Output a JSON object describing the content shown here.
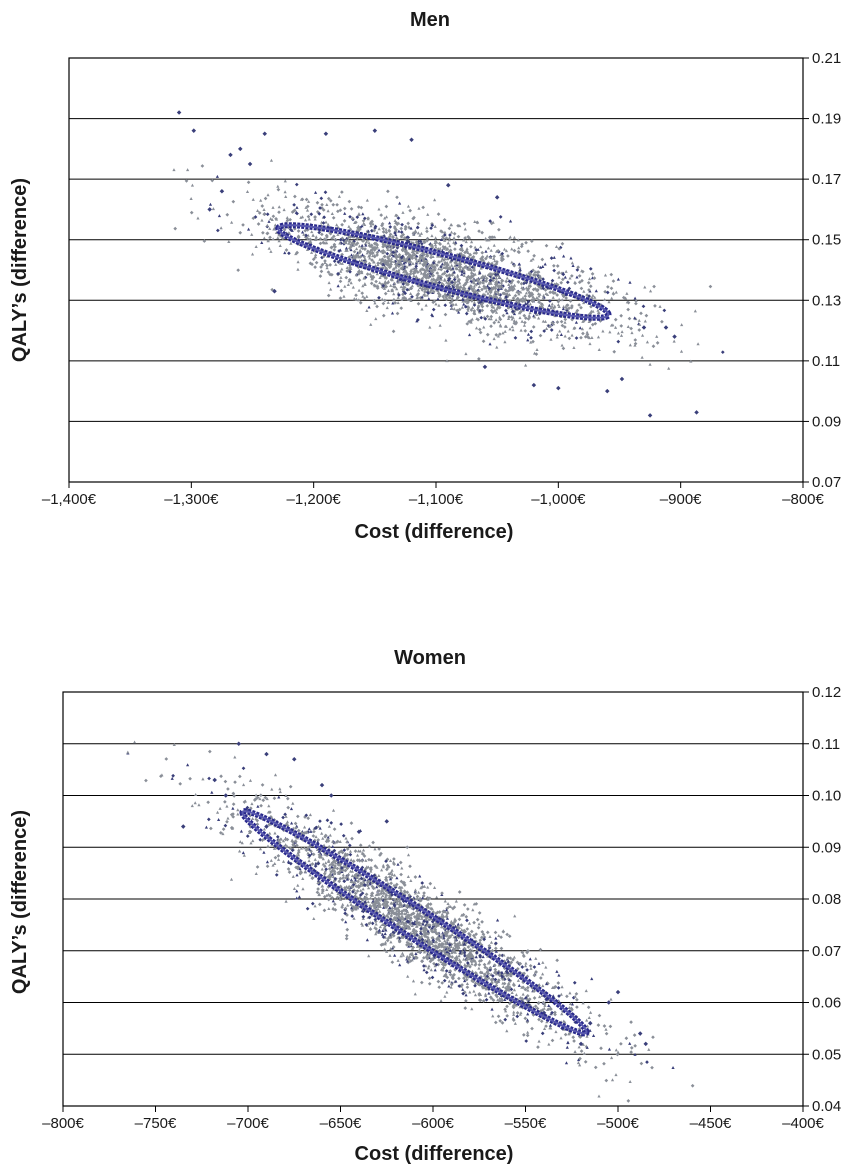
{
  "chart_data": [
    {
      "type": "scatter",
      "title": "Men",
      "xlabel": "Cost (difference)",
      "ylabel": "QALY’s (difference)",
      "xlim": [
        -1400,
        -800
      ],
      "ylim": [
        0.07,
        0.21
      ],
      "x_ticks": [
        -1400,
        -1300,
        -1200,
        -1100,
        -1000,
        -900,
        -800
      ],
      "x_tick_labels": [
        "–1,400€",
        "–1,300€",
        "–1,200€",
        "–1,100€",
        "–1,000€",
        "–900€",
        "–800€"
      ],
      "y_ticks": [
        0.07,
        0.09,
        0.11,
        0.13,
        0.15,
        0.17,
        0.19,
        0.21
      ],
      "y_tick_labels": [
        "0.07",
        "0.09",
        "0.11",
        "0.13",
        "0.15",
        "0.17",
        "0.19",
        "0.21"
      ],
      "y_axis_side": "right",
      "grid": "horizontal",
      "cloud": {
        "center": [
          -1094,
          0.1395
        ],
        "n_points": 2500,
        "sd_major_cost": 70,
        "sd_minor_qaly": 0.0075,
        "slope": -0.000105
      },
      "series": [
        {
          "name": "",
          "points": [
            [
              -1310,
              0.192
            ],
            [
              -1298,
              0.186
            ],
            [
              -1285,
              0.16
            ],
            [
              -1275,
              0.166
            ],
            [
              -1268,
              0.178
            ],
            [
              -1260,
              0.18
            ],
            [
              -1252,
              0.175
            ],
            [
              -1240,
              0.185
            ],
            [
              -1232,
              0.133
            ],
            [
              -1190,
              0.185
            ],
            [
              -1150,
              0.186
            ],
            [
              -1120,
              0.183
            ],
            [
              -930,
              0.121
            ],
            [
              -925,
              0.092
            ],
            [
              -912,
              0.121
            ],
            [
              -905,
              0.118
            ],
            [
              -887,
              0.093
            ],
            [
              -948,
              0.104
            ],
            [
              -960,
              0.1
            ],
            [
              -1000,
              0.101
            ],
            [
              -1020,
              0.102
            ],
            [
              -1060,
              0.108
            ],
            [
              -1090,
              0.168
            ],
            [
              -1050,
              0.164
            ]
          ]
        }
      ],
      "ellipse": {
        "center": [
          -1094,
          0.1395
        ],
        "a": 135,
        "b": 0.0057,
        "slope": -0.000105,
        "color": "#2a2a8c"
      },
      "colors": {
        "points": "#8a8f98",
        "points_dark": "#3a3f7a",
        "ellipse": "#2a2a8c",
        "grid": "#000000"
      }
    },
    {
      "type": "scatter",
      "title": "Women",
      "xlabel": "Cost (difference)",
      "ylabel": "QALY’s (difference)",
      "xlim": [
        -800,
        -400
      ],
      "ylim": [
        0.04,
        0.12
      ],
      "x_ticks": [
        -800,
        -750,
        -700,
        -650,
        -600,
        -550,
        -500,
        -450,
        -400
      ],
      "x_tick_labels": [
        "–800€",
        "–750€",
        "–700€",
        "–650€",
        "–600€",
        "–550€",
        "–500€",
        "–450€",
        "–400€"
      ],
      "y_ticks": [
        0.04,
        0.05,
        0.06,
        0.07,
        0.08,
        0.09,
        0.1,
        0.11,
        0.12
      ],
      "y_tick_labels": [
        "0.04",
        "0.05",
        "0.06",
        "0.07",
        "0.08",
        "0.09",
        "0.10",
        "0.11",
        "0.12"
      ],
      "y_axis_side": "right",
      "grid": "horizontal",
      "cloud": {
        "center": [
          -610,
          0.0755
        ],
        "n_points": 2500,
        "sd_major_cost": 45,
        "sd_minor_qaly": 0.0042,
        "slope": -0.000228
      },
      "series": [
        {
          "name": "",
          "points": [
            [
              -735,
              0.094
            ],
            [
              -718,
              0.103
            ],
            [
              -712,
              0.1
            ],
            [
              -705,
              0.11
            ],
            [
              -690,
              0.108
            ],
            [
              -675,
              0.107
            ],
            [
              -660,
              0.102
            ],
            [
              -655,
              0.1
            ],
            [
              -700,
              0.097
            ],
            [
              -690,
              0.094
            ],
            [
              -485,
              0.052
            ],
            [
              -488,
              0.054
            ],
            [
              -500,
              0.062
            ],
            [
              -505,
              0.06
            ],
            [
              -515,
              0.056
            ],
            [
              -520,
              0.052
            ],
            [
              -530,
              0.055
            ],
            [
              -540,
              0.058
            ],
            [
              -640,
              0.093
            ],
            [
              -625,
              0.095
            ]
          ]
        }
      ],
      "ellipse": {
        "center": [
          -610,
          0.0755
        ],
        "a": 93,
        "b": 0.0034,
        "slope": -0.000228,
        "color": "#2a2a8c"
      },
      "colors": {
        "points": "#8a8f98",
        "points_dark": "#3a3f7a",
        "ellipse": "#2a2a8c",
        "grid": "#000000"
      }
    }
  ]
}
